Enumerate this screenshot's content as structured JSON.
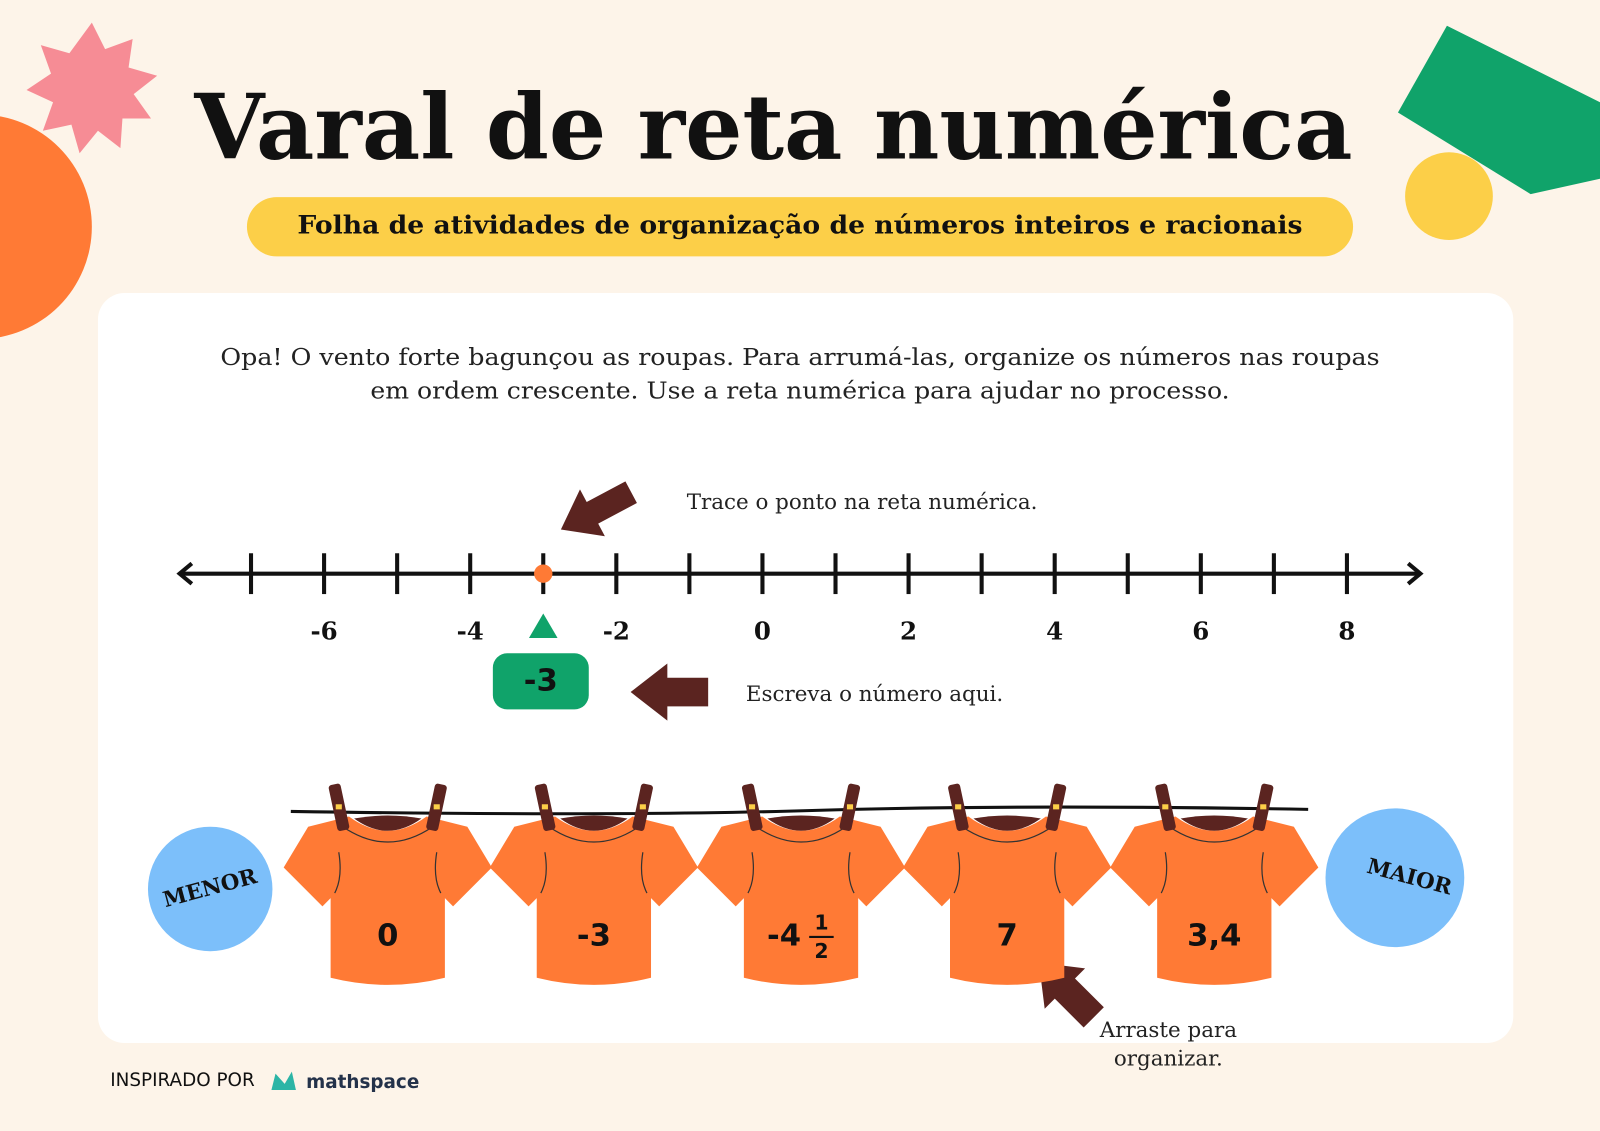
{
  "header": {
    "title": "Varal de reta numérica",
    "subtitle": "Folha de atividades de organização de números inteiros e racionais"
  },
  "instructions": [
    "Opa! O vento forte bagunçou as roupas. Para arrumá-las, organize os números nas roupas",
    "em ordem crescente. Use a reta numérica para ajudar no processo."
  ],
  "number_line": {
    "ticks": [
      -7,
      -6,
      -5,
      -4,
      -3,
      -2,
      -1,
      0,
      1,
      2,
      3,
      4,
      5,
      6,
      7,
      8
    ],
    "labels": [
      -6,
      -4,
      -2,
      0,
      2,
      4,
      6,
      8
    ],
    "point": -3,
    "answer": "-3"
  },
  "annotations": {
    "plot": "Trace o ponto na reta numérica.",
    "write": "Escreva o número aqui.",
    "drag": [
      "Arraste para",
      "organizar."
    ]
  },
  "shirts": [
    {
      "label": "0"
    },
    {
      "label": "-3"
    },
    {
      "whole": "-4",
      "numerator": "1",
      "denominator": "2"
    },
    {
      "label": "7"
    },
    {
      "label": "3,4"
    }
  ],
  "ends": {
    "left": "MENOR",
    "right": "MAIOR"
  },
  "footer": {
    "credit": "INSPIRADO POR",
    "brand": "mathspace"
  }
}
